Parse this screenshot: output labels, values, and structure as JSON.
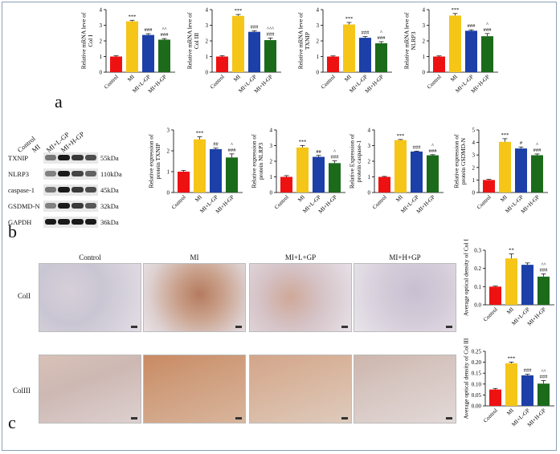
{
  "panels": {
    "a": "a",
    "b": "b",
    "c": "c"
  },
  "colors": {
    "control": "#ee1111",
    "mi": "#f5c518",
    "mi_l_gp": "#1c3fa8",
    "mi_h_gp": "#1b6b1b"
  },
  "chart_data": [
    {
      "id": "a1",
      "type": "bar",
      "ylabel": [
        "Relative mRNA leve of",
        "Col I"
      ],
      "ylim": [
        0,
        4
      ],
      "yticks": [
        "0",
        "1",
        "2",
        "3",
        "4"
      ],
      "categories": [
        "Control",
        "MI",
        "MI+L-GP",
        "MI+H-GP"
      ],
      "values": [
        1.0,
        3.25,
        2.38,
        2.08
      ],
      "errors": [
        0.05,
        0.07,
        0.08,
        0.07
      ],
      "annotations": [
        [
          "",
          "***"
        ],
        [
          "",
          "###"
        ],
        [
          "^^",
          "###"
        ]
      ]
    },
    {
      "id": "a2",
      "type": "bar",
      "ylabel": [
        "Relative mRNA leve of",
        "Col III"
      ],
      "ylim": [
        0,
        4
      ],
      "yticks": [
        "0",
        "1",
        "2",
        "3",
        "4"
      ],
      "categories": [
        "Control",
        "MI",
        "MI+L-GP",
        "MI+H-GP"
      ],
      "values": [
        1.0,
        3.6,
        2.58,
        2.05
      ],
      "errors": [
        0.05,
        0.09,
        0.07,
        0.14
      ],
      "annotations": [
        [
          "",
          "***"
        ],
        [
          "",
          "###"
        ],
        [
          "^^^",
          "###"
        ]
      ]
    },
    {
      "id": "a3",
      "type": "bar",
      "ylabel": [
        "Relative mRNA leve of",
        "TXNIP"
      ],
      "ylim": [
        0,
        4
      ],
      "yticks": [
        "0",
        "1",
        "2",
        "3",
        "4"
      ],
      "categories": [
        "Control",
        "MI",
        "MI+L-GP",
        "MI+H-GP"
      ],
      "values": [
        1.0,
        3.05,
        2.2,
        1.85
      ],
      "errors": [
        0.04,
        0.13,
        0.08,
        0.1
      ],
      "annotations": [
        [
          "",
          "***"
        ],
        [
          "",
          "###"
        ],
        [
          "^",
          "###"
        ]
      ]
    },
    {
      "id": "a4",
      "type": "bar",
      "ylabel": [
        "Relative mRNA leve of",
        "NLRP3"
      ],
      "ylim": [
        0,
        4
      ],
      "yticks": [
        "0",
        "1",
        "2",
        "3",
        "4"
      ],
      "categories": [
        "Control",
        "MI",
        "MI+L-GP",
        "MI+H-GP"
      ],
      "values": [
        1.0,
        3.62,
        2.65,
        2.3
      ],
      "errors": [
        0.04,
        0.13,
        0.06,
        0.17
      ],
      "annotations": [
        [
          "",
          "***"
        ],
        [
          "",
          "###"
        ],
        [
          "^",
          "###"
        ]
      ]
    },
    {
      "id": "b1",
      "type": "bar",
      "ylabel": [
        "Relative expression of",
        "protein TXNIP"
      ],
      "ylim": [
        0,
        3
      ],
      "yticks": [
        "0",
        "1",
        "2",
        "3"
      ],
      "categories": [
        "Control",
        "MI",
        "MI+L-GP",
        "MI+H-GP"
      ],
      "values": [
        1.0,
        2.55,
        2.08,
        1.68
      ],
      "errors": [
        0.06,
        0.12,
        0.05,
        0.17
      ],
      "annotations": [
        [
          "",
          "***"
        ],
        [
          "",
          "##"
        ],
        [
          "^",
          "###"
        ]
      ]
    },
    {
      "id": "b2",
      "type": "bar",
      "ylabel": [
        "Relative expression of",
        "protein NLRP3"
      ],
      "ylim": [
        0,
        4
      ],
      "yticks": [
        "0",
        "1",
        "2",
        "3",
        "4"
      ],
      "categories": [
        "Control",
        "MI",
        "MI+L-GP",
        "MI+H-GP"
      ],
      "values": [
        1.0,
        2.88,
        2.28,
        1.88
      ],
      "errors": [
        0.08,
        0.13,
        0.09,
        0.14
      ],
      "annotations": [
        [
          "",
          "***"
        ],
        [
          "",
          "##"
        ],
        [
          "^",
          "###"
        ]
      ]
    },
    {
      "id": "b3",
      "type": "bar",
      "ylabel": [
        "Relative Expression of",
        "protein caspase-1"
      ],
      "ylim": [
        0,
        4
      ],
      "yticks": [
        "0",
        "1",
        "2",
        "3",
        "4"
      ],
      "categories": [
        "Control",
        "MI",
        "MI+L-GP",
        "MI+H-GP"
      ],
      "values": [
        1.0,
        3.35,
        2.62,
        2.38
      ],
      "errors": [
        0.03,
        0.04,
        0.03,
        0.04
      ],
      "annotations": [
        [
          "",
          "***"
        ],
        [
          "",
          "###"
        ],
        [
          "^",
          "###"
        ]
      ]
    },
    {
      "id": "b4",
      "type": "bar",
      "ylabel": [
        "Relative expression of",
        "protein GSDMD-N"
      ],
      "ylim": [
        0,
        5
      ],
      "yticks": [
        "0",
        "1",
        "2",
        "3",
        "4",
        "5"
      ],
      "categories": [
        "Control",
        "MI",
        "MI+L-GP",
        "MI+H-GP"
      ],
      "values": [
        1.0,
        4.05,
        3.52,
        2.98
      ],
      "errors": [
        0.05,
        0.25,
        0.12,
        0.1
      ],
      "annotations": [
        [
          "",
          "***"
        ],
        [
          "",
          "#"
        ],
        [
          "^",
          "###"
        ]
      ]
    },
    {
      "id": "c1",
      "type": "bar",
      "ylabel": [
        "Average optical density of Col I"
      ],
      "ylim": [
        0,
        0.3
      ],
      "yticks": [
        "0.0",
        "0.1",
        "0.2",
        "0.3"
      ],
      "categories": [
        "Control",
        "MI",
        "MI+L-GP",
        "MI+H-GP"
      ],
      "values": [
        0.1,
        0.255,
        0.22,
        0.155
      ],
      "errors": [
        0.003,
        0.025,
        0.01,
        0.015
      ],
      "annotations": [
        [
          "",
          "**"
        ],
        [
          "",
          ""
        ],
        [
          "^^",
          "###"
        ]
      ]
    },
    {
      "id": "c2",
      "type": "bar",
      "ylabel": [
        "Average optical density of Col III"
      ],
      "ylim": [
        0,
        0.25
      ],
      "yticks": [
        "0.00",
        "0.05",
        "0.10",
        "0.15",
        "0.20",
        "0.25"
      ],
      "categories": [
        "Control",
        "MI",
        "MI+L-GP",
        "MI+H-GP"
      ],
      "values": [
        0.075,
        0.195,
        0.14,
        0.102
      ],
      "errors": [
        0.005,
        0.006,
        0.005,
        0.014
      ],
      "annotations": [
        [
          "",
          "***"
        ],
        [
          "",
          "###"
        ],
        [
          "^^",
          "###"
        ]
      ]
    }
  ],
  "western_blot": {
    "lanes": [
      "Control",
      "MI",
      "MI+L-GP",
      "MI+H-GP"
    ],
    "rows": [
      {
        "protein": "TXNIP",
        "kda": "55kDa"
      },
      {
        "protein": "NLRP3",
        "kda": "110kDa"
      },
      {
        "protein": "caspase-1",
        "kda": "45kDa"
      },
      {
        "protein": "GSDMD-N",
        "kda": "32kDa"
      },
      {
        "protein": "GAPDH",
        "kda": "36kDa"
      }
    ]
  },
  "histology": {
    "columns": [
      "Control",
      "MI",
      "MI+L+GP",
      "MI+H+GP"
    ],
    "rows": [
      "ColI",
      "ColIII"
    ]
  }
}
